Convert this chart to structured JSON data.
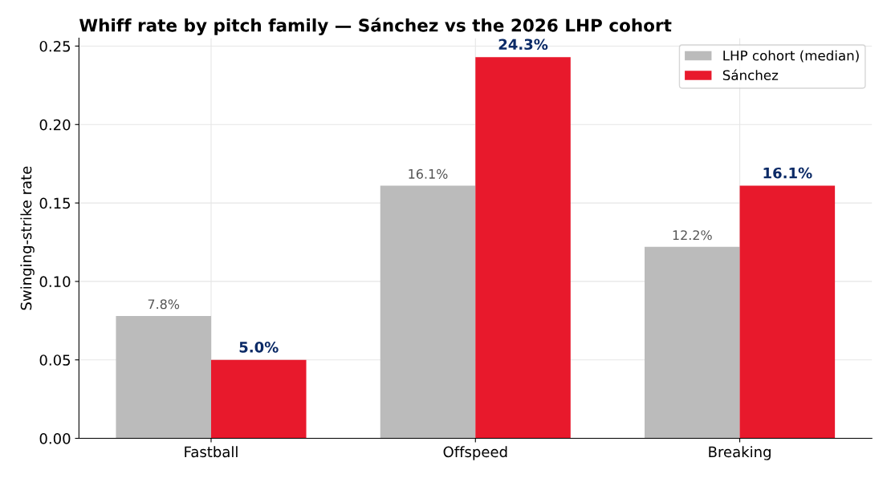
{
  "chart_data": {
    "type": "bar",
    "title": "Whiff rate by pitch family — Sánchez vs the 2026 LHP cohort",
    "ylabel": "Swinging-strike rate",
    "categories": [
      "Fastball",
      "Offspeed",
      "Breaking"
    ],
    "series": [
      {
        "name": "LHP cohort (median)",
        "color": "#bbbbbb",
        "values": [
          0.078,
          0.161,
          0.122
        ],
        "value_labels": [
          "7.8%",
          "16.1%",
          "12.2%"
        ]
      },
      {
        "name": "Sánchez",
        "color": "#e8192c",
        "values": [
          0.05,
          0.243,
          0.161
        ],
        "value_labels": [
          "5.0%",
          "24.3%",
          "16.1%"
        ]
      }
    ],
    "ylim": [
      0,
      0.255
    ],
    "yticks": [
      {
        "value": 0,
        "label": "0.00"
      },
      {
        "value": 0.05,
        "label": "0.05"
      },
      {
        "value": 0.1,
        "label": "0.10"
      },
      {
        "value": 0.15,
        "label": "0.15"
      },
      {
        "value": 0.2,
        "label": "0.20"
      },
      {
        "value": 0.25,
        "label": "0.25"
      }
    ],
    "grid": true,
    "legend": "top right"
  }
}
